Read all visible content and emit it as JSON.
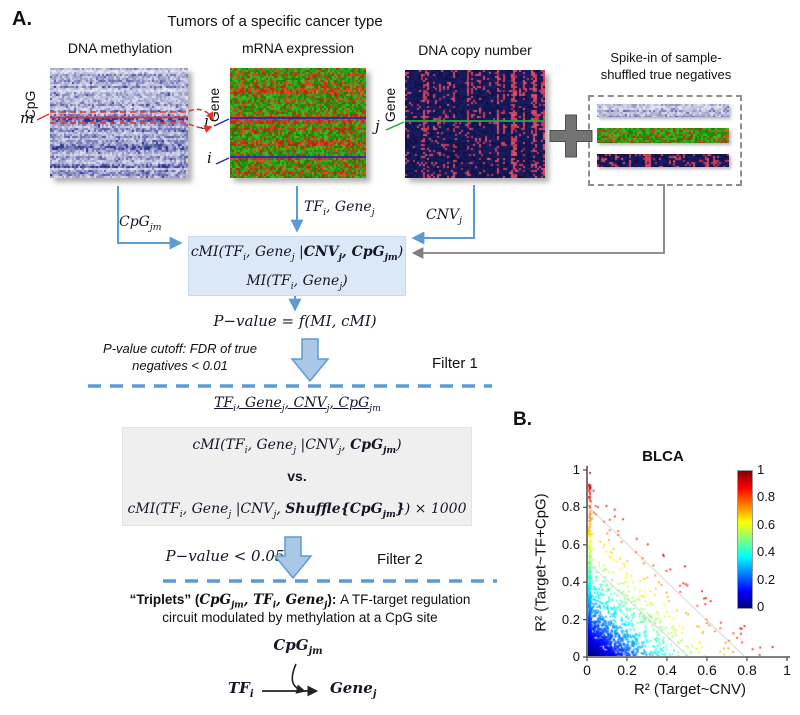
{
  "panel_a": {
    "label": "A.",
    "title": "Tumors of a specific cancer type",
    "heatmaps": {
      "methylation": {
        "caption": "DNA methylation",
        "axis_label": "CpG",
        "row_label": "m"
      },
      "mrna": {
        "caption": "mRNA expression",
        "axis_label": "Gene",
        "row_label_j": "j",
        "row_label_i": "i"
      },
      "cnv": {
        "caption": "DNA copy number",
        "axis_label": "Gene",
        "row_label_j": "j"
      }
    },
    "plus_sign": "+",
    "spikein": {
      "caption_line1": "Spike-in of sample-",
      "caption_line2": "shuffled true negatives"
    },
    "arrow_labels": {
      "cpg": [
        {
          "t": "CpG",
          "s": "i"
        },
        {
          "t": "jm",
          "s": "i",
          "sub": true
        }
      ],
      "tf_gene": [
        {
          "t": "TF",
          "s": "i"
        },
        {
          "t": "i",
          "s": "i",
          "sub": true
        },
        {
          "t": ", Gene",
          "s": "i"
        },
        {
          "t": "j",
          "s": "i",
          "sub": true
        }
      ],
      "cnv": [
        {
          "t": "CNV",
          "s": "i"
        },
        {
          "t": "j",
          "s": "i",
          "sub": true
        }
      ]
    },
    "mi_box": {
      "line1": [
        {
          "t": "cMI(TF",
          "s": "i"
        },
        {
          "t": "i",
          "s": "i",
          "sub": true
        },
        {
          "t": ", Gene",
          "s": "i"
        },
        {
          "t": "j",
          "s": "i",
          "sub": true
        },
        {
          "t": " |",
          "s": "i"
        },
        {
          "t": "CNV",
          "s": "bi"
        },
        {
          "t": "j",
          "s": "bi",
          "sub": true
        },
        {
          "t": ", CpG",
          "s": "bi"
        },
        {
          "t": "jm",
          "s": "bi",
          "sub": true
        },
        {
          "t": ")",
          "s": "i"
        }
      ],
      "line2": [
        {
          "t": "MI(TF",
          "s": "i"
        },
        {
          "t": "i",
          "s": "i",
          "sub": true
        },
        {
          "t": ", Gene",
          "s": "i"
        },
        {
          "t": "j",
          "s": "i",
          "sub": true
        },
        {
          "t": ")",
          "s": "i"
        }
      ]
    },
    "pvalue_eq": [
      {
        "t": "P−value = f(MI, cMI)",
        "s": "i"
      }
    ],
    "filter1": {
      "cutoff_line1": "P-value cutoff: FDR of true",
      "cutoff_line2": "negatives < 0.01",
      "label": "Filter 1"
    },
    "quad_line": [
      {
        "t": "TF",
        "s": "i"
      },
      {
        "t": "i",
        "s": "i",
        "sub": true
      },
      {
        "t": ", Gene",
        "s": "i"
      },
      {
        "t": "j",
        "s": "i",
        "sub": true
      },
      {
        "t": ", CNV",
        "s": "i"
      },
      {
        "t": "j",
        "s": "i",
        "sub": true
      },
      {
        "t": ", CpG",
        "s": "i"
      },
      {
        "t": "jm",
        "s": "i",
        "sub": true
      }
    ],
    "vs_box": {
      "line1": [
        {
          "t": "cMI(TF",
          "s": "i"
        },
        {
          "t": "i",
          "s": "i",
          "sub": true
        },
        {
          "t": ", Gene",
          "s": "i"
        },
        {
          "t": "j",
          "s": "i",
          "sub": true
        },
        {
          "t": " |CNV",
          "s": "i"
        },
        {
          "t": "j",
          "s": "i",
          "sub": true
        },
        {
          "t": ", ",
          "s": "i"
        },
        {
          "t": "CpG",
          "s": "bi"
        },
        {
          "t": "jm",
          "s": "bi",
          "sub": true
        },
        {
          "t": ")",
          "s": "i"
        }
      ],
      "vs": "vs.",
      "line2": [
        {
          "t": "cMI(TF",
          "s": "i"
        },
        {
          "t": "i",
          "s": "i",
          "sub": true
        },
        {
          "t": ", Gene",
          "s": "i"
        },
        {
          "t": "j",
          "s": "i",
          "sub": true
        },
        {
          "t": " |CNV",
          "s": "i"
        },
        {
          "t": "j",
          "s": "i",
          "sub": true
        },
        {
          "t": ", ",
          "s": "i"
        },
        {
          "t": "Shuffle{",
          "s": "bi"
        },
        {
          "t": "CpG",
          "s": "bi"
        },
        {
          "t": "jm",
          "s": "bi",
          "sub": true
        },
        {
          "t": "}",
          "s": "bi"
        },
        {
          "t": ") × 1000",
          "s": "i"
        }
      ]
    },
    "filter2": {
      "pvalue": [
        {
          "t": "P−value < 0.05",
          "s": "i"
        }
      ],
      "label": "Filter 2"
    },
    "triplets": {
      "line1": [
        {
          "t": "“Triplets” (",
          "s": "b"
        },
        {
          "t": "CpG",
          "s": "bi"
        },
        {
          "t": "jm",
          "s": "bi",
          "sub": true
        },
        {
          "t": ", ",
          "s": "bi"
        },
        {
          "t": "TF",
          "s": "bi"
        },
        {
          "t": "i",
          "s": "bi",
          "sub": true
        },
        {
          "t": ", ",
          "s": "bi"
        },
        {
          "t": "Gene",
          "s": "bi"
        },
        {
          "t": "j",
          "s": "bi",
          "sub": true
        },
        {
          "t": ")",
          "s": "b"
        },
        {
          "t": ": ",
          "s": "b"
        },
        {
          "t": "A TF-target regulation",
          "s": "r"
        }
      ],
      "line2": "circuit modulated by methylation at a CpG site"
    },
    "circuit": {
      "cpg": [
        {
          "t": "CpG",
          "s": "bi"
        },
        {
          "t": "jm",
          "s": "bi",
          "sub": true
        }
      ],
      "tf": [
        {
          "t": "TF",
          "s": "bi"
        },
        {
          "t": "i",
          "s": "bi",
          "sub": true
        }
      ],
      "gene": [
        {
          "t": "Gene",
          "s": "bi"
        },
        {
          "t": "j",
          "s": "bi",
          "sub": true
        }
      ]
    }
  },
  "panel_b": {
    "label": "B."
  },
  "chart_data": {
    "type": "scatter",
    "panel": "B",
    "title": "BLCA",
    "xlabel": "R² (Target~CNV)",
    "ylabel": "R² (Target~TF+CpG)",
    "xlim": [
      0,
      1
    ],
    "ylim": [
      0,
      1
    ],
    "xticks": [
      "0",
      "0.2",
      "0.4",
      "0.6",
      "0.8",
      "1"
    ],
    "yticks": [
      "1",
      "0.8",
      "0.6",
      "0.4",
      "0.2",
      "0"
    ],
    "grid": false,
    "legend": "none",
    "colorbar": {
      "position": "right",
      "colormap": "jet",
      "range": [
        0,
        1
      ],
      "ticks": [
        "1",
        "0.8",
        "0.6",
        "0.4",
        "0.2",
        "0"
      ]
    },
    "guide_lines": [
      {
        "from": [
          0,
          0.8
        ],
        "to": [
          0.78,
          0
        ]
      },
      {
        "from": [
          0,
          0.5
        ],
        "to": [
          0.5,
          0
        ]
      },
      {
        "from": [
          0,
          0.25
        ],
        "to": [
          0.25,
          0
        ]
      }
    ],
    "points": {
      "description": "dense triangular cloud bounded by x+y<~0.9; most points near origin; vertical column of high-value points along x=0 reaching y~0.9; color encodes total R2 (x+y) on jet scale",
      "n": 2400,
      "seed": 42,
      "exp_scale": 0.26,
      "axis_column_frac": 0.28,
      "max_total": 0.92,
      "color_encoding": "x+y"
    }
  },
  "colors": {
    "arrow_blue": "#5b9bd5",
    "arrow_gray": "#808080",
    "block_arrow_fill": "#aac7e6",
    "filter_dash": "#5b9bd5",
    "mi_box_fill": "#dbe8f5",
    "vs_box_fill": "#efefef",
    "highlight_red": "#e8302a",
    "row_line_blue": "#2626cc",
    "row_line_green": "#27a840",
    "axis_gray": "#555555",
    "guide_gray": "#c4c4c4"
  },
  "render": {
    "heatmaps": {
      "methylation": {
        "white": "#ffffff",
        "blue": "#252c8c",
        "seed": 11,
        "dark_band_rows": [
          23,
          24,
          25,
          26,
          38,
          39,
          40,
          48,
          49
        ]
      },
      "mrna": {
        "green_lo": "#157a08",
        "green_hi": "#45c222",
        "red_lo": "#b02008",
        "red_hi": "#e8502c",
        "seed": 12,
        "red_band_rows": [
          3,
          10,
          11,
          12,
          24,
          25,
          26,
          27,
          30,
          36,
          37,
          38,
          44,
          45,
          52
        ]
      },
      "cnv": {
        "navy_lo": "#0e1040",
        "navy_hi": "#1b1f6e",
        "red_lo": "#c03045",
        "red_hi": "#e05575",
        "seed": 13
      }
    }
  }
}
